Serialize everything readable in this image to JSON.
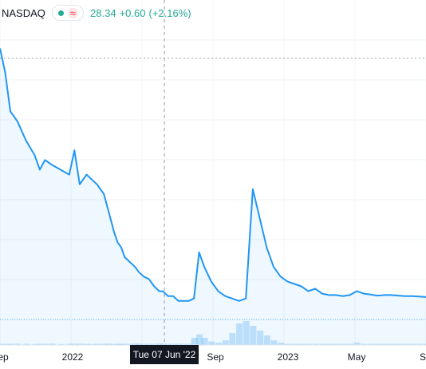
{
  "legend": {
    "symbol": "NASDAQ",
    "price": "28.34",
    "change": "+0.60",
    "change_pct": "(+2.16%)",
    "approx_glyph": "≈",
    "status_color": "#22ab94",
    "change_color": "#22ab94"
  },
  "crosshair": {
    "date_label": "Tue 07 Jun '22"
  },
  "chart_data": {
    "type": "area",
    "line_color": "#2196f3",
    "fill_color": "#2196f3",
    "grid": true,
    "x_tick_labels": [
      "ep",
      "2022",
      "Sep",
      "2023",
      "May",
      "S"
    ],
    "x": [
      0,
      0.3,
      0.6,
      1.0,
      1.5,
      2.0,
      2.3,
      2.6,
      3.0,
      3.5,
      4.0,
      4.3,
      4.6,
      5.0,
      5.3,
      5.6,
      6.0,
      6.3,
      6.6,
      6.8,
      7.0,
      7.2,
      7.5,
      7.8,
      8.0,
      8.3,
      8.6,
      8.9,
      9.2,
      9.4,
      9.7,
      10.0,
      10.3,
      10.6,
      10.9,
      11.2,
      11.5,
      11.8,
      12.2,
      12.6,
      13.0,
      13.4,
      13.8,
      14.2,
      14.6,
      15.0,
      15.4,
      15.8,
      16.2,
      16.6,
      17.0,
      17.4,
      17.8,
      18.2,
      18.6,
      19.0,
      19.4,
      19.8,
      20.2,
      20.6,
      21.0,
      21.4,
      21.8,
      22.2,
      22.6,
      23.0,
      23.4,
      23.8,
      24.2,
      24.6
    ],
    "y": [
      55,
      50,
      42,
      40,
      36,
      33,
      30,
      32,
      31,
      30,
      29,
      34,
      27,
      29,
      28,
      27,
      25,
      21,
      17,
      15,
      14,
      12,
      11,
      10,
      9,
      8,
      7.5,
      6,
      5,
      5,
      4,
      4,
      3,
      3,
      3,
      3.5,
      13,
      10,
      7,
      5,
      4,
      3.5,
      3,
      3.5,
      26,
      20,
      14,
      10,
      8,
      7,
      6.5,
      6,
      5,
      5.5,
      4.5,
      4.2,
      4.2,
      4,
      4.2,
      5,
      4.5,
      4.3,
      4.1,
      4.2,
      4.2,
      4.1,
      4,
      4,
      3.9,
      3.8
    ],
    "volume": [
      0.05,
      0.04,
      0.05,
      0.06,
      0.05,
      0.04,
      0.05,
      0.05,
      0.06,
      0.04,
      0.05,
      0.05,
      0.06,
      0.05,
      0.04,
      0.05,
      0.05,
      0.06,
      0.04,
      0.05,
      0.05,
      0.05,
      0.05,
      0.06,
      0.05,
      0.05,
      0.05,
      0.05,
      0.06,
      0.05,
      0.05,
      0.05,
      0.05,
      0.05,
      0.05,
      0.3,
      0.45,
      0.3,
      0.15,
      0.1,
      0.2,
      0.5,
      0.9,
      1.0,
      0.8,
      0.6,
      0.4,
      0.2,
      0.1,
      0.05,
      0.05,
      0.05,
      0.05,
      0.05,
      0.05,
      0.05,
      0.05,
      0.05,
      0.05,
      0.1,
      0.05,
      0.05,
      0.05,
      0.05,
      0.05,
      0.05,
      0.05,
      0.05,
      0.05,
      0.05
    ]
  }
}
